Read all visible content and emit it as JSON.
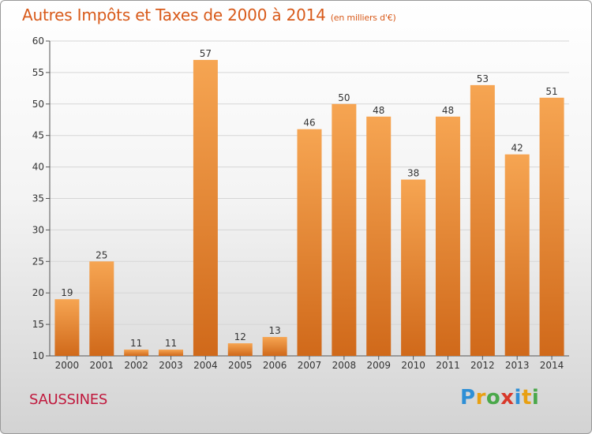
{
  "title": "Autres Impôts et Taxes de 2000 à 2014",
  "unit": "(en milliers d'€)",
  "city": "SAUSSINES",
  "logo": {
    "letters": [
      "P",
      "r",
      "o",
      "x",
      "i",
      "t",
      "i"
    ],
    "colors": [
      "#2e8fd6",
      "#e8a012",
      "#4aa84a",
      "#d8382a",
      "#2e8fd6",
      "#e8a012",
      "#4aa84a"
    ]
  },
  "colors": {
    "bar_top": "#f6a552",
    "bar_bottom": "#d0691a",
    "title": "#d85a1a",
    "city": "#c0193d"
  },
  "chart_data": {
    "type": "bar",
    "categories": [
      "2000",
      "2001",
      "2002",
      "2003",
      "2004",
      "2005",
      "2006",
      "2007",
      "2008",
      "2009",
      "2010",
      "2011",
      "2012",
      "2013",
      "2014"
    ],
    "values": [
      19,
      25,
      11,
      11,
      57,
      12,
      13,
      46,
      50,
      48,
      38,
      48,
      53,
      42,
      51
    ],
    "ylim": [
      10,
      60
    ],
    "yticks": [
      10,
      15,
      20,
      25,
      30,
      35,
      40,
      45,
      50,
      55,
      60
    ],
    "grid": true
  }
}
